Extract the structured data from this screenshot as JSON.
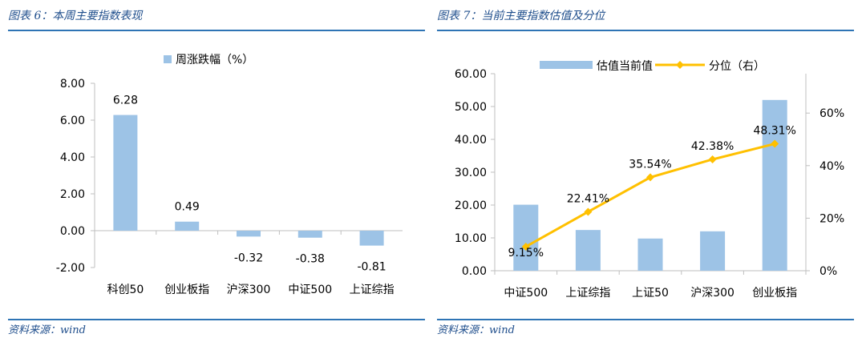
{
  "left_panel": {
    "title": "图表 6：本周主要指数表现",
    "source": "资料来源：wind"
  },
  "right_panel": {
    "title": "图表 7：当前主要指数估值及分位",
    "source": "资料来源：wind"
  },
  "colors": {
    "bar": "#9DC3E6",
    "line": "#FFC000",
    "rule": "#2E74B5",
    "title": "#1F4E8C"
  },
  "chart_data": [
    {
      "type": "bar",
      "categories": [
        "科创50",
        "创业板指",
        "沪深300",
        "中证500",
        "上证综指"
      ],
      "series": [
        {
          "name": "周涨跌幅（%）",
          "values": [
            6.28,
            0.49,
            -0.32,
            -0.38,
            -0.81
          ]
        }
      ],
      "data_labels": [
        "6.28",
        "0.49",
        "-0.32",
        "-0.38",
        "-0.81"
      ],
      "y_ticks": [
        "8.00",
        "6.00",
        "4.00",
        "2.00",
        "0.00",
        "-2.00"
      ],
      "ylim": [
        -2,
        8
      ],
      "grid": false,
      "legend": "top"
    },
    {
      "type": "bar",
      "categories": [
        "中证500",
        "上证综指",
        "上证50",
        "沪深300",
        "创业板指"
      ],
      "series": [
        {
          "name": "估值当前值",
          "type": "bar",
          "axis": "left",
          "values": [
            20.1,
            12.4,
            9.8,
            12.0,
            52.0
          ]
        },
        {
          "name": "分位（右）",
          "type": "line",
          "axis": "right",
          "values": [
            9.15,
            22.41,
            35.54,
            42.38,
            48.31
          ]
        }
      ],
      "line_labels": [
        "9.15%",
        "22.41%",
        "35.54%",
        "42.38%",
        "48.31%"
      ],
      "y_ticks": [
        "60.00",
        "50.00",
        "40.00",
        "30.00",
        "20.00",
        "10.00",
        "0.00"
      ],
      "y2_ticks": [
        "60%",
        "40%",
        "20%",
        "0%"
      ],
      "ylim": [
        0,
        60
      ],
      "y2lim": [
        0,
        75
      ],
      "grid": false,
      "legend": "top"
    }
  ]
}
